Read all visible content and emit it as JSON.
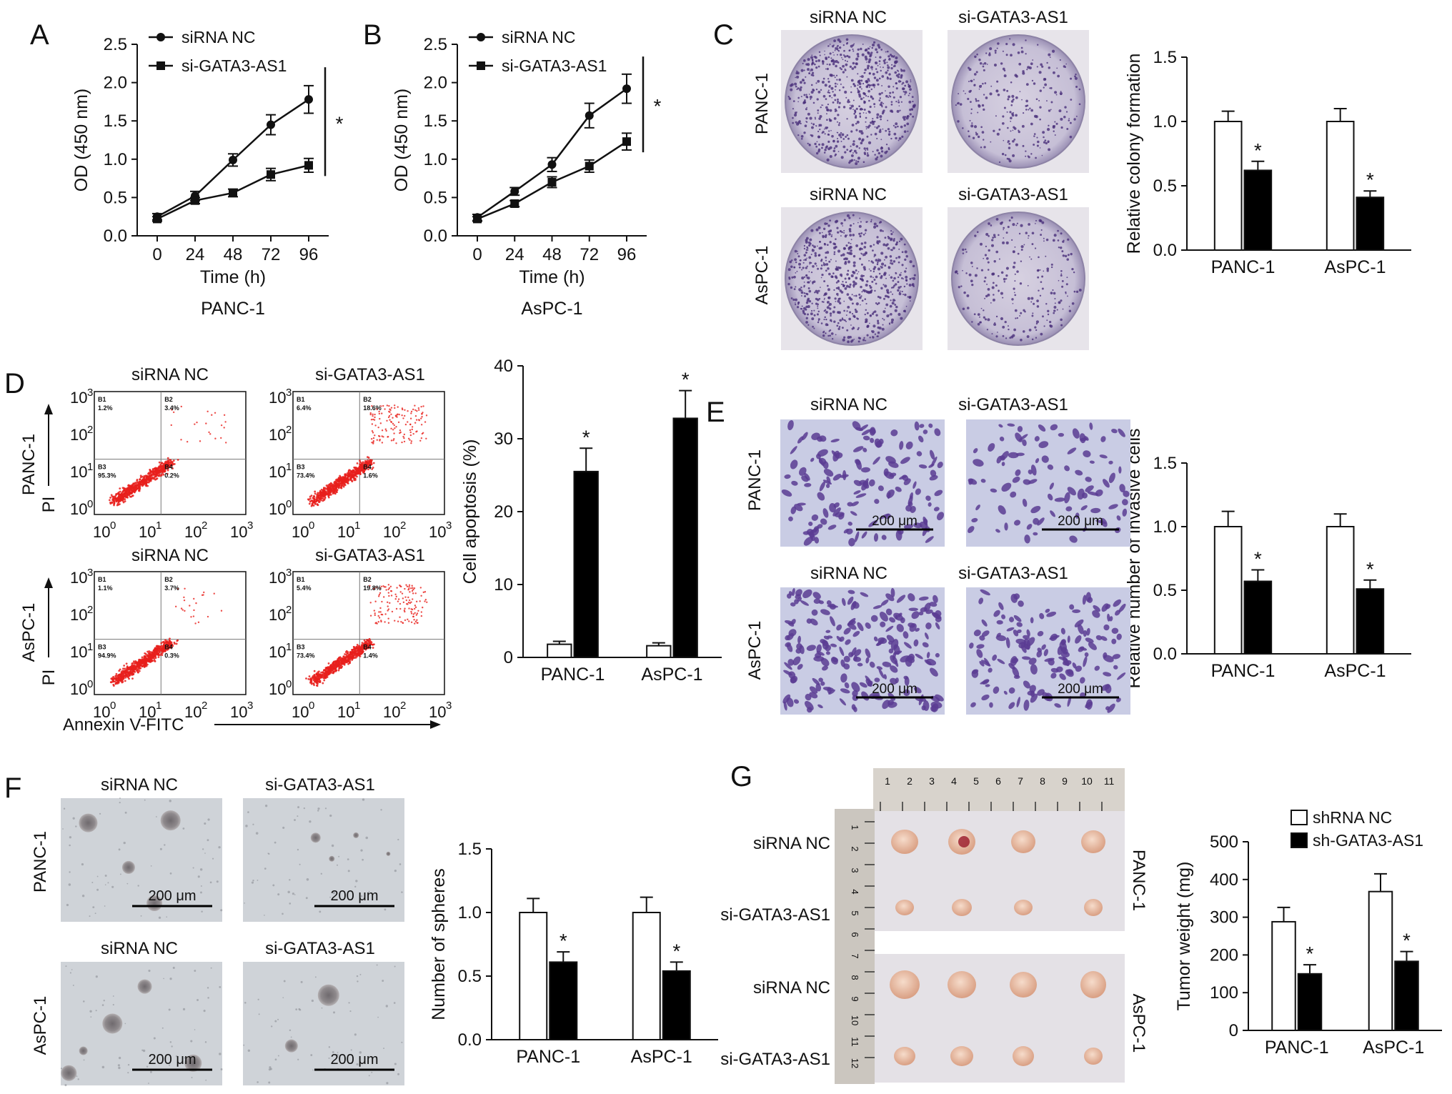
{
  "panel_letters": {
    "A": "A",
    "B": "B",
    "C": "C",
    "D": "D",
    "E": "E",
    "F": "F",
    "G": "G"
  },
  "chart_data": [
    {
      "id": "A",
      "type": "line",
      "x": [
        0,
        24,
        48,
        72,
        96
      ],
      "series": [
        {
          "name": "siRNA NC",
          "marker": "circle",
          "values": [
            0.25,
            0.52,
            0.99,
            1.45,
            1.78
          ],
          "errors": [
            0.04,
            0.06,
            0.08,
            0.13,
            0.18
          ]
        },
        {
          "name": "si-GATA3-AS1",
          "marker": "square",
          "values": [
            0.22,
            0.46,
            0.56,
            0.8,
            0.92
          ],
          "errors": [
            0.03,
            0.04,
            0.05,
            0.08,
            0.09
          ]
        }
      ],
      "xlabel": "Time (h)",
      "ylabel": "OD (450 nm)",
      "caption": "PANC-1",
      "ylim": [
        0,
        2.5
      ],
      "yticks": [
        "0.0",
        "0.5",
        "1.0",
        "1.5",
        "2.0",
        "2.5"
      ],
      "sig": "*"
    },
    {
      "id": "B",
      "type": "line",
      "x": [
        0,
        24,
        48,
        72,
        96
      ],
      "series": [
        {
          "name": "siRNA NC",
          "marker": "circle",
          "values": [
            0.24,
            0.58,
            0.93,
            1.57,
            1.92
          ],
          "errors": [
            0.04,
            0.05,
            0.09,
            0.16,
            0.19
          ]
        },
        {
          "name": "si-GATA3-AS1",
          "marker": "square",
          "values": [
            0.22,
            0.42,
            0.7,
            0.91,
            1.23
          ],
          "errors": [
            0.03,
            0.04,
            0.07,
            0.08,
            0.11
          ]
        }
      ],
      "xlabel": "Time (h)",
      "ylabel": "OD (450 nm)",
      "caption": "AsPC-1",
      "ylim": [
        0,
        2.5
      ],
      "yticks": [
        "0.0",
        "0.5",
        "1.0",
        "1.5",
        "2.0",
        "2.5"
      ],
      "sig": "*"
    },
    {
      "id": "C",
      "type": "bar",
      "categories": [
        "PANC-1",
        "AsPC-1"
      ],
      "series": [
        {
          "values": [
            1.0,
            1.0
          ],
          "errors": [
            0.08,
            0.1
          ]
        },
        {
          "values": [
            0.62,
            0.41
          ],
          "errors": [
            0.07,
            0.05
          ]
        }
      ],
      "ylabel": "Relative colony formation",
      "ylim": [
        0,
        1.5
      ],
      "yticks": [
        "0.0",
        "0.5",
        "1.0",
        "1.5"
      ],
      "sig": "*"
    },
    {
      "id": "D",
      "type": "bar",
      "categories": [
        "PANC-1",
        "AsPC-1"
      ],
      "series": [
        {
          "values": [
            1.8,
            1.6
          ],
          "errors": [
            0.4,
            0.4
          ]
        },
        {
          "values": [
            25.5,
            32.8
          ],
          "errors": [
            3.2,
            3.8
          ]
        }
      ],
      "ylabel": "Cell apoptosis (%)",
      "ylim": [
        0,
        40
      ],
      "yticks": [
        "0",
        "10",
        "20",
        "30",
        "40"
      ],
      "sig": "*"
    },
    {
      "id": "E",
      "type": "bar",
      "categories": [
        "PANC-1",
        "AsPC-1"
      ],
      "series": [
        {
          "values": [
            1.0,
            1.0
          ],
          "errors": [
            0.12,
            0.1
          ]
        },
        {
          "values": [
            0.57,
            0.51
          ],
          "errors": [
            0.09,
            0.07
          ]
        }
      ],
      "ylabel": "Relative number of invasive cells",
      "ylim": [
        0,
        1.5
      ],
      "yticks": [
        "0.0",
        "0.5",
        "1.0",
        "1.5"
      ],
      "sig": "*"
    },
    {
      "id": "F",
      "type": "bar",
      "categories": [
        "PANC-1",
        "AsPC-1"
      ],
      "series": [
        {
          "values": [
            1.0,
            1.0
          ],
          "errors": [
            0.11,
            0.12
          ]
        },
        {
          "values": [
            0.61,
            0.54
          ],
          "errors": [
            0.08,
            0.07
          ]
        }
      ],
      "ylabel": "Number of spheres",
      "ylim": [
        0,
        1.5
      ],
      "yticks": [
        "0.0",
        "0.5",
        "1.0",
        "1.5"
      ],
      "sig": "*"
    },
    {
      "id": "G",
      "type": "bar",
      "categories": [
        "PANC-1",
        "AsPC-1"
      ],
      "series": [
        {
          "name": "shRNA NC",
          "values": [
            288,
            368
          ],
          "errors": [
            38,
            47
          ]
        },
        {
          "name": "sh-GATA3-AS1",
          "values": [
            150,
            183
          ],
          "errors": [
            24,
            26
          ]
        }
      ],
      "ylabel": "Tumor weight (mg)",
      "ylim": [
        0,
        500
      ],
      "yticks": [
        "0",
        "100",
        "200",
        "300",
        "400",
        "500"
      ],
      "sig": "*"
    }
  ],
  "panel_c": {
    "col_label_1": "siRNA NC",
    "col_label_2": "si-GATA3-AS1",
    "row2_col_label_1": "siRNA NC",
    "row2_col_label_2": "si-GATA3-AS1",
    "row_label_1": "PANC-1",
    "row_label_2": "AsPC-1"
  },
  "panel_d": {
    "col_label_1": "siRNA NC",
    "col_label_2": "si-GATA3-AS1",
    "row2_col_label_1": "siRNA NC",
    "row2_col_label_2": "si-GATA3-AS1",
    "row_label_1": "PANC-1",
    "row_label_2": "AsPC-1",
    "y_axis_label": "PI",
    "x_axis_label": "Annexin V-FITC",
    "tick_mantissa": "10",
    "tick_exponents": [
      "0",
      "1",
      "2",
      "3"
    ],
    "quadrant_names": [
      "B1",
      "B2",
      "B3",
      "B4"
    ],
    "plots": [
      {
        "q": [
          "1.2%",
          "3.4%",
          "95.3%",
          "0.2%"
        ]
      },
      {
        "q": [
          "6.4%",
          "18.6%",
          "73.4%",
          "1.6%"
        ]
      },
      {
        "q": [
          "1.1%",
          "3.7%",
          "94.9%",
          "0.3%"
        ]
      },
      {
        "q": [
          "5.4%",
          "19.8%",
          "73.4%",
          "1.4%"
        ]
      }
    ]
  },
  "panel_e": {
    "col_label_1": "siRNA NC",
    "col_label_2": "si-GATA3-AS1",
    "row2_col_label_1": "siRNA NC",
    "row2_col_label_2": "si-GATA3-AS1",
    "row_label_1": "PANC-1",
    "row_label_2": "AsPC-1",
    "scale_bar": "200 μm"
  },
  "panel_f": {
    "col_label_1": "siRNA NC",
    "col_label_2": "si-GATA3-AS1",
    "row2_col_label_1": "siRNA NC",
    "row2_col_label_2": "si-GATA3-AS1",
    "row_label_1": "PANC-1",
    "row_label_2": "AsPC-1",
    "scale_bar": "200 μm"
  },
  "panel_g": {
    "row_label_1": "siRNA NC",
    "row_label_2": "si-GATA3-AS1",
    "row_label_3": "siRNA NC",
    "row_label_4": "si-GATA3-AS1",
    "side_label_1": "PANC-1",
    "side_label_2": "AsPC-1",
    "ruler_top": [
      "1",
      "2",
      "3",
      "4",
      "5",
      "6",
      "7",
      "8",
      "9",
      "10",
      "11"
    ],
    "ruler_left": [
      "1",
      "2",
      "3",
      "4",
      "5",
      "6",
      "7",
      "8",
      "9",
      "10",
      "11",
      "12"
    ]
  },
  "colors": {
    "ink": "#111111",
    "bar_open": "#ffffff",
    "bar_filled": "#000000",
    "flow_dots": "#e8201c",
    "colony_dish": "#c9c2d6",
    "colony_dot": "#4a2f7a",
    "transwell_bg": "#c9cce4",
    "transwell_cell": "#5a3c93",
    "sphere_bg": "#cfd3d8",
    "tumor": "#e9c2a8",
    "tumor_bg": "#e4e1e6",
    "ruler": "#b9b6b0"
  }
}
